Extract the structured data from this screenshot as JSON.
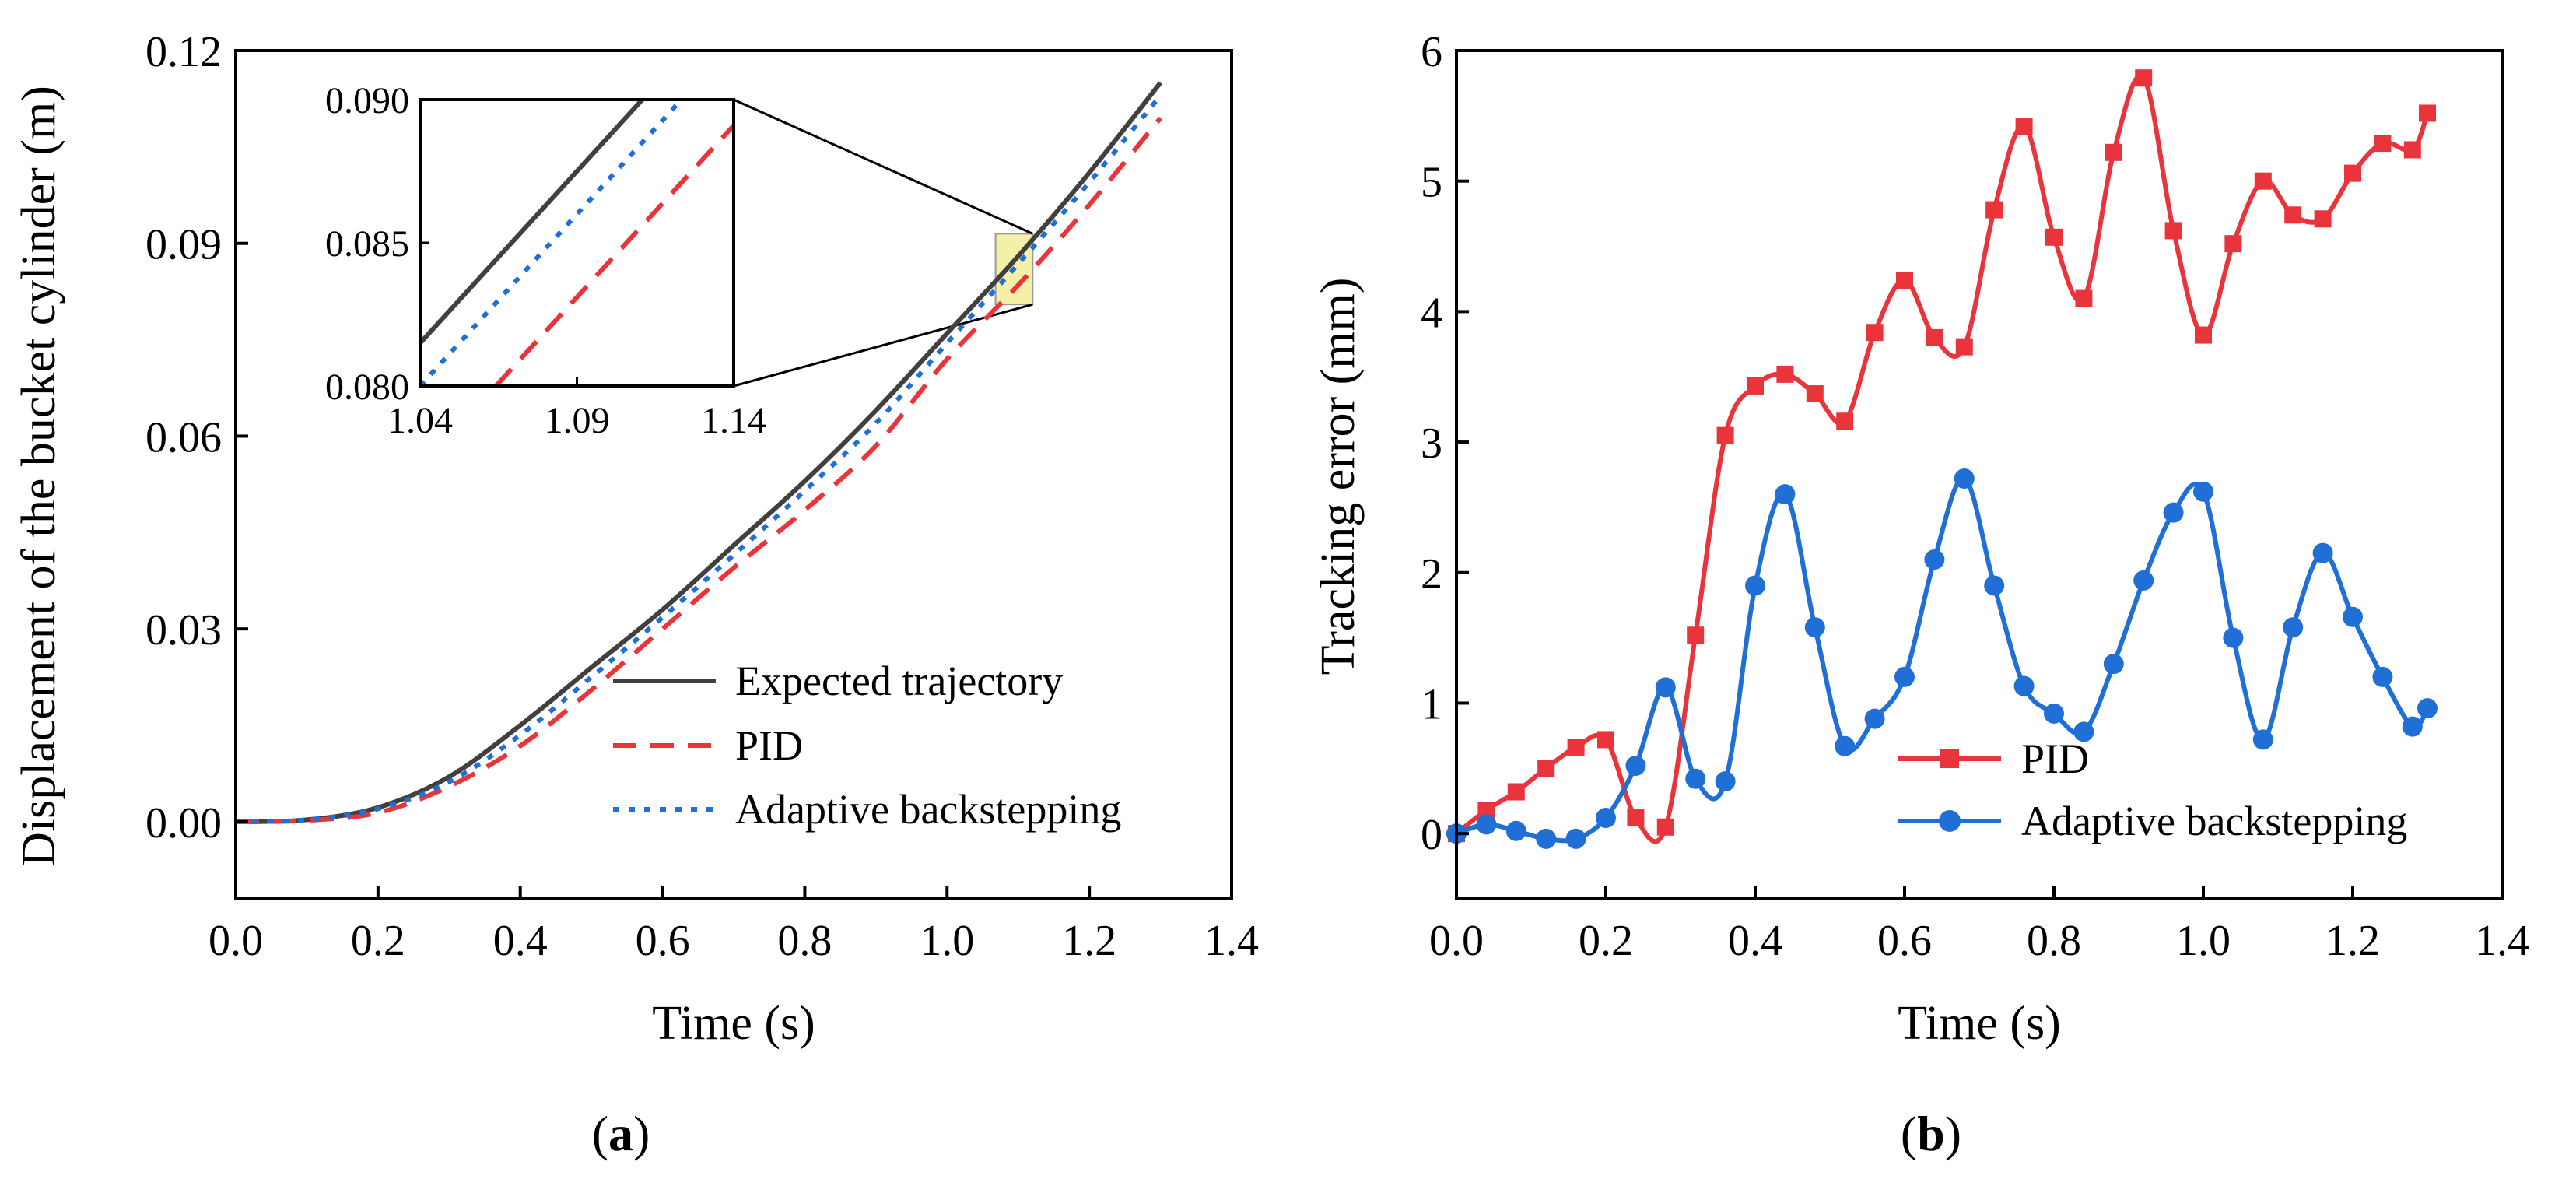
{
  "chart_data": [
    {
      "panel": "(a)",
      "panel_letter": "a",
      "type": "line",
      "xlabel": "Time (s)",
      "ylabel": "Displacement of the bucket cylinder (m)",
      "xlim": [
        0,
        1.4
      ],
      "ylim": [
        -0.012,
        0.12
      ],
      "xticks": [
        "0.0",
        "0.2",
        "0.4",
        "0.6",
        "0.8",
        "1.0",
        "1.2",
        "1.4"
      ],
      "yticks": [
        "0.00",
        "0.03",
        "0.06",
        "0.09",
        "0.12"
      ],
      "legend_position": "lower-right",
      "grid": false,
      "series": [
        {
          "name": "Expected trajectory",
          "color": "#404040",
          "style": "solid",
          "x": [
            0,
            0.1,
            0.2,
            0.3,
            0.4,
            0.5,
            0.6,
            0.7,
            0.8,
            0.9,
            1.0,
            1.1,
            1.2,
            1.3
          ],
          "y": [
            0,
            0.0003,
            0.0022,
            0.007,
            0.015,
            0.024,
            0.033,
            0.043,
            0.053,
            0.064,
            0.076,
            0.088,
            0.101,
            0.115
          ]
        },
        {
          "name": "PID",
          "color": "#e8343a",
          "style": "dashed",
          "x": [
            0,
            0.1,
            0.2,
            0.3,
            0.4,
            0.5,
            0.6,
            0.7,
            0.8,
            0.9,
            1.0,
            1.1,
            1.2,
            1.3
          ],
          "y": [
            0,
            0.0002,
            0.0014,
            0.0055,
            0.0118,
            0.0205,
            0.03,
            0.0395,
            0.0485,
            0.0585,
            0.072,
            0.0835,
            0.096,
            0.1095
          ]
        },
        {
          "name": "Adaptive backstepping",
          "color": "#1f6fd6",
          "style": "dotted",
          "x": [
            0,
            0.1,
            0.2,
            0.3,
            0.4,
            0.5,
            0.6,
            0.7,
            0.8,
            0.9,
            1.0,
            1.1,
            1.2,
            1.3
          ],
          "y": [
            0,
            0.0003,
            0.002,
            0.0062,
            0.0135,
            0.0225,
            0.0318,
            0.0415,
            0.0515,
            0.062,
            0.0745,
            0.0868,
            0.0995,
            0.113
          ]
        }
      ],
      "inset": {
        "xlim": [
          1.04,
          1.14
        ],
        "ylim": [
          0.08,
          0.09
        ],
        "xticks": [
          "1.04",
          "1.09",
          "1.14"
        ],
        "yticks": [
          "0.080",
          "0.085",
          "0.090"
        ],
        "zoom_box": {
          "x": [
            1.09,
            1.14
          ],
          "y": [
            0.0805,
            0.0915
          ]
        },
        "zoom_box_color": "#f5f0a8",
        "series": [
          {
            "name": "Expected trajectory",
            "x": [
              1.04,
              1.14
            ],
            "y": [
              0.0815,
              0.0935
            ]
          },
          {
            "name": "PID",
            "x": [
              1.04,
              1.14
            ],
            "y": [
              0.0771,
              0.0891
            ]
          },
          {
            "name": "Adaptive backstepping",
            "x": [
              1.04,
              1.14
            ],
            "y": [
              0.08,
              0.092
            ]
          }
        ]
      }
    },
    {
      "panel": "(b)",
      "panel_letter": "b",
      "type": "line",
      "xlabel": "Time (s)",
      "ylabel": "Tracking error (mm)",
      "xlim": [
        0,
        1.4
      ],
      "ylim": [
        -0.5,
        6
      ],
      "xticks": [
        "0.0",
        "0.2",
        "0.4",
        "0.6",
        "0.8",
        "1.0",
        "1.2",
        "1.4"
      ],
      "yticks": [
        "0",
        "1",
        "2",
        "3",
        "4",
        "5",
        "6"
      ],
      "legend_position": "lower-left",
      "grid": false,
      "series": [
        {
          "name": "PID",
          "color": "#e8343a",
          "marker": "square",
          "x": [
            0,
            0.04,
            0.08,
            0.12,
            0.16,
            0.2,
            0.24,
            0.28,
            0.32,
            0.36,
            0.4,
            0.44,
            0.48,
            0.52,
            0.56,
            0.6,
            0.64,
            0.68,
            0.72,
            0.76,
            0.8,
            0.84,
            0.88,
            0.92,
            0.96,
            1.0,
            1.04,
            1.08,
            1.12,
            1.16,
            1.2,
            1.24,
            1.28,
            1.3
          ],
          "y": [
            0,
            0.18,
            0.32,
            0.5,
            0.66,
            0.72,
            0.12,
            0.05,
            1.52,
            3.05,
            3.43,
            3.52,
            3.37,
            3.16,
            3.84,
            4.24,
            3.8,
            3.73,
            4.78,
            5.42,
            4.57,
            4.1,
            5.22,
            5.79,
            4.62,
            3.82,
            4.52,
            5.0,
            4.74,
            4.71,
            5.06,
            5.29,
            5.24,
            5.52
          ]
        },
        {
          "name": "Adaptive backstepping",
          "color": "#1f6fd6",
          "marker": "circle",
          "x": [
            0,
            0.04,
            0.08,
            0.12,
            0.16,
            0.2,
            0.24,
            0.28,
            0.32,
            0.36,
            0.4,
            0.44,
            0.48,
            0.52,
            0.56,
            0.6,
            0.64,
            0.68,
            0.72,
            0.76,
            0.8,
            0.84,
            0.88,
            0.92,
            0.96,
            1.0,
            1.04,
            1.08,
            1.12,
            1.16,
            1.2,
            1.24,
            1.28,
            1.3
          ],
          "y": [
            0,
            0.07,
            0.02,
            -0.04,
            -0.04,
            0.12,
            0.52,
            1.12,
            0.42,
            0.4,
            1.9,
            2.6,
            1.58,
            0.67,
            0.88,
            1.2,
            2.1,
            2.72,
            1.9,
            1.13,
            0.92,
            0.78,
            1.3,
            1.94,
            2.46,
            2.62,
            1.5,
            0.72,
            1.58,
            2.15,
            1.66,
            1.2,
            0.82,
            0.96
          ]
        }
      ]
    }
  ]
}
